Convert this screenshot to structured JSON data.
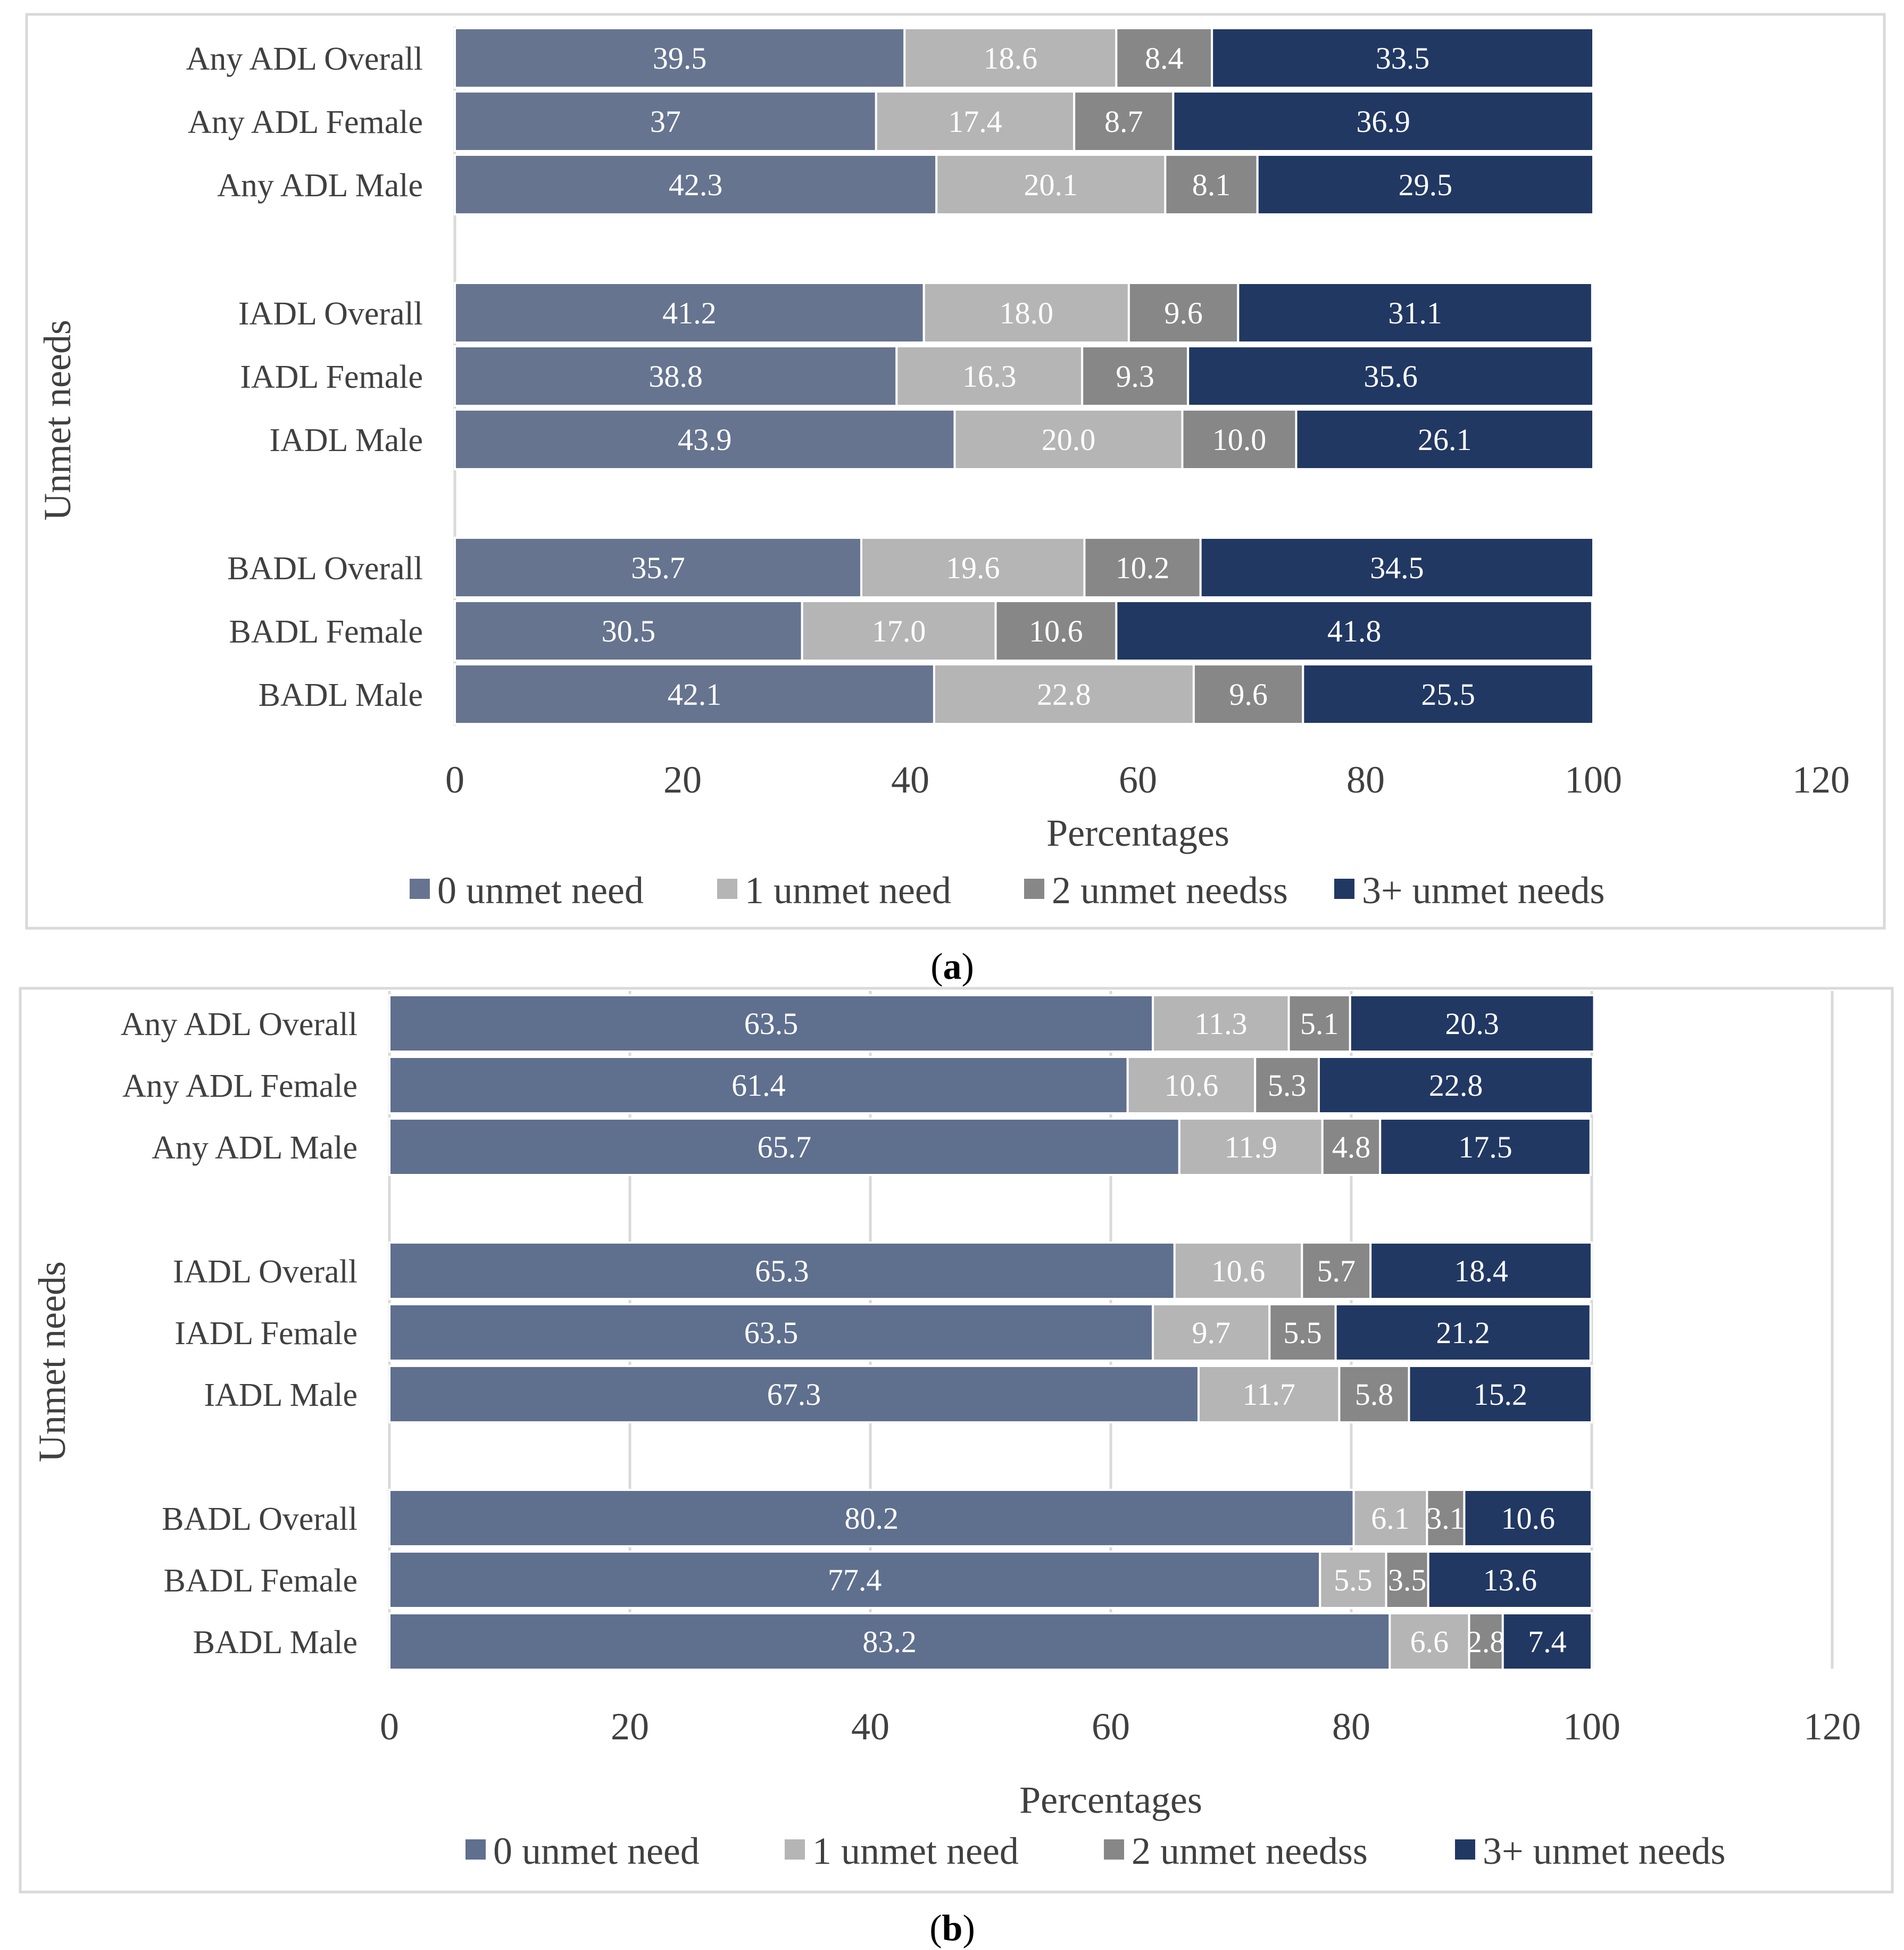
{
  "chart_data": [
    {
      "type": "bar",
      "orientation": "horizontal",
      "stacked": true,
      "panel_label": "a",
      "xlabel": "Percentages",
      "ylabel": "Unmet needs",
      "xlim": [
        0,
        120
      ],
      "xticks": [
        0,
        20,
        40,
        60,
        80,
        100,
        120
      ],
      "grid": false,
      "legend": "bottom",
      "categories": [
        "Any ADL Overall",
        "Any ADL Female",
        "Any ADL Male",
        "IADL Overall",
        "IADL Female",
        "IADL Male",
        "BADL Overall",
        "BADL Female",
        "BADL Male"
      ],
      "series": [
        {
          "name": "0 unmet need",
          "color": "#66748f",
          "values": [
            39.5,
            37,
            42.3,
            41.2,
            38.8,
            43.9,
            35.7,
            30.5,
            42.1
          ],
          "labels": [
            "39.5",
            "37",
            "42.3",
            "41.2",
            "38.8",
            "43.9",
            "35.7",
            "30.5",
            "42.1"
          ]
        },
        {
          "name": "1 unmet need",
          "color": "#b5b5b5",
          "values": [
            18.6,
            17.4,
            20.1,
            18.0,
            16.3,
            20.0,
            19.6,
            17.0,
            22.8
          ],
          "labels": [
            "18.6",
            "17.4",
            "20.1",
            "18.0",
            "16.3",
            "20.0",
            "19.6",
            "17.0",
            "22.8"
          ]
        },
        {
          "name": "2 unmet needss",
          "color": "#878787",
          "values": [
            8.4,
            8.7,
            8.1,
            9.6,
            9.3,
            10.0,
            10.2,
            10.6,
            9.6
          ],
          "labels": [
            "8.4",
            "8.7",
            "8.1",
            "9.6",
            "9.3",
            "10.0",
            "10.2",
            "10.6",
            "9.6"
          ]
        },
        {
          "name": "3+ unmet needs",
          "color": "#213863",
          "values": [
            33.5,
            36.9,
            29.5,
            31.1,
            35.6,
            26.1,
            34.5,
            41.8,
            25.5
          ],
          "labels": [
            "33.5",
            "36.9",
            "29.5",
            "31.1",
            "35.6",
            "26.1",
            "34.5",
            "41.8",
            "25.5"
          ]
        }
      ]
    },
    {
      "type": "bar",
      "orientation": "horizontal",
      "stacked": true,
      "panel_label": "b",
      "xlabel": "Percentages",
      "ylabel": "Unmet needs",
      "xlim": [
        0,
        120
      ],
      "xticks": [
        0,
        20,
        40,
        60,
        80,
        100,
        120
      ],
      "grid": true,
      "legend": "bottom",
      "categories": [
        "Any ADL Overall",
        "Any ADL Female",
        "Any ADL Male",
        "IADL Overall",
        "IADL Female",
        "IADL Male",
        "BADL Overall",
        "BADL Female",
        "BADL Male"
      ],
      "series": [
        {
          "name": "0 unmet need",
          "color": "#5f6f8e",
          "values": [
            63.5,
            61.4,
            65.7,
            65.3,
            63.5,
            67.3,
            80.2,
            77.4,
            83.2
          ],
          "labels": [
            "63.5",
            "61.4",
            "65.7",
            "65.3",
            "63.5",
            "67.3",
            "80.2",
            "77.4",
            "83.2"
          ]
        },
        {
          "name": "1 unmet need",
          "color": "#b5b5b5",
          "values": [
            11.3,
            10.6,
            11.9,
            10.6,
            9.7,
            11.7,
            6.1,
            5.5,
            6.6
          ],
          "labels": [
            "11.3",
            "10.6",
            "11.9",
            "10.6",
            "9.7",
            "11.7",
            "6.1",
            "5.5",
            "6.6"
          ]
        },
        {
          "name": "2 unmet needss",
          "color": "#878787",
          "values": [
            5.1,
            5.3,
            4.8,
            5.7,
            5.5,
            5.8,
            3.1,
            3.5,
            2.8
          ],
          "labels": [
            "5.1",
            "5.3",
            "4.8",
            "5.7",
            "5.5",
            "5.8",
            "3.1",
            "3.5",
            "2.8"
          ]
        },
        {
          "name": "3+ unmet needs",
          "color": "#213863",
          "values": [
            20.3,
            22.8,
            17.5,
            18.4,
            21.2,
            15.2,
            10.6,
            13.6,
            7.4
          ],
          "labels": [
            "20.3",
            "22.8",
            "17.5",
            "18.4",
            "21.2",
            "15.2",
            "10.6",
            "13.6",
            "7.4"
          ]
        }
      ]
    }
  ]
}
